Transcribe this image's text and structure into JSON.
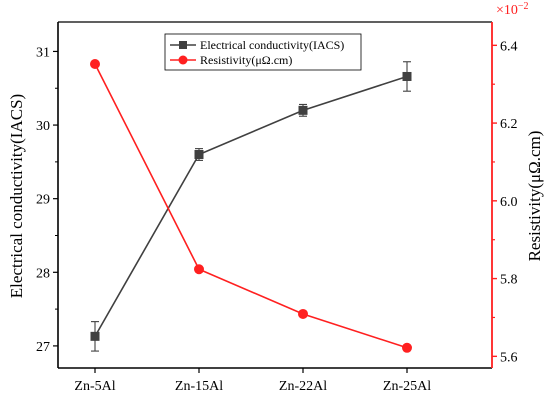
{
  "chart_data": {
    "type": "line",
    "categories": [
      "Zn-5Al",
      "Zn-15Al",
      "Zn-22Al",
      "Zn-25Al"
    ],
    "series": [
      {
        "name": "Electrical conductivity(IACS)",
        "axis": "left",
        "color": "#404040",
        "marker": "square",
        "values": [
          27.13,
          29.6,
          30.2,
          30.66
        ],
        "errors": [
          0.2,
          0.08,
          0.08,
          0.2
        ]
      },
      {
        "name": "Resistivity(μΩ.cm)",
        "axis": "right",
        "color": "#ff2020",
        "marker": "circle",
        "values": [
          6.352,
          5.824,
          5.709,
          5.622
        ]
      }
    ],
    "left_axis": {
      "label": "Electrical conductivity(IACS)",
      "ylim": [
        26.7,
        31.4
      ],
      "ticks": [
        "27",
        "28",
        "29",
        "30",
        "31"
      ],
      "tick_values": [
        27,
        28,
        29,
        30,
        31
      ]
    },
    "right_axis": {
      "label": "Resistivity(μΩ.cm)",
      "ylim": [
        5.57,
        6.46
      ],
      "ticks": [
        "5.6",
        "5.8",
        "6.0",
        "6.2",
        "6.4"
      ],
      "tick_values": [
        5.6,
        5.8,
        6.0,
        6.2,
        6.4
      ],
      "multiplier": "×10",
      "multiplier_exp": "−2",
      "color": "#ff2020"
    },
    "legend_position": "top-center",
    "grid": false
  }
}
